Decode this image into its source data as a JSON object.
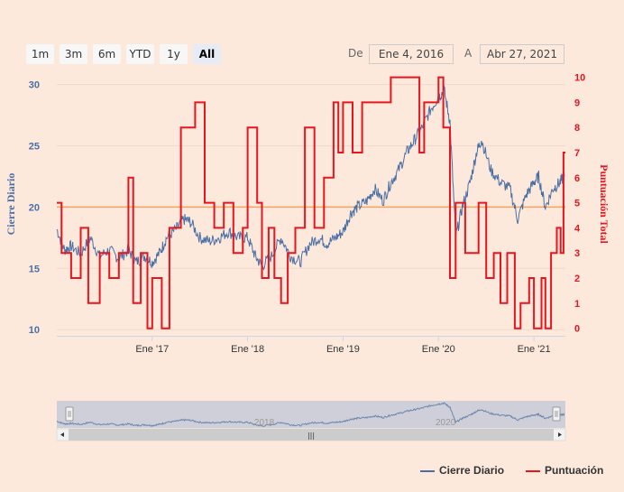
{
  "range_selector": {
    "buttons": [
      "1m",
      "3m",
      "6m",
      "YTD",
      "1y",
      "All"
    ],
    "selected": "All",
    "from_label": "De",
    "from_value": "Ene 4, 2016",
    "to_label": "A",
    "to_value": "Abr 27, 2021"
  },
  "colors": {
    "close": "#4a6fa5",
    "score": "#e8141e",
    "refline": "#f4a460",
    "bg": "#fce9dc"
  },
  "navigator": {
    "labels": [
      "2018",
      "2020"
    ],
    "scroll_grip": "|||"
  },
  "legend": {
    "close_label": "Cierre Diario",
    "score_label": "Puntuación"
  },
  "chart_data": {
    "type": "line",
    "title": "",
    "x_range": [
      2016.0,
      2021.33
    ],
    "x_ticks": [
      {
        "label": "Ene '17",
        "x": 2017.0
      },
      {
        "label": "Ene '18",
        "x": 2018.0
      },
      {
        "label": "Ene '19",
        "x": 2019.0
      },
      {
        "label": "Ene '20",
        "x": 2020.0
      },
      {
        "label": "Ene '21",
        "x": 2021.0
      }
    ],
    "y_left": {
      "label": "Cierre Diario",
      "range": [
        9.5,
        31
      ],
      "ticks": [
        10,
        15,
        20,
        25,
        30
      ]
    },
    "y_right": {
      "label": "Puntuación Total",
      "range": [
        -0.3,
        10.2
      ],
      "ticks": [
        0,
        1,
        2,
        3,
        4,
        5,
        6,
        7,
        8,
        9,
        10
      ]
    },
    "reference_line": {
      "axis": "left",
      "value": 20
    },
    "series": [
      {
        "name": "Cierre Diario",
        "axis": "left",
        "points": [
          [
            2016.0,
            18.2
          ],
          [
            2016.08,
            16.5
          ],
          [
            2016.15,
            16.8
          ],
          [
            2016.25,
            16.2
          ],
          [
            2016.35,
            17.5
          ],
          [
            2016.45,
            16.0
          ],
          [
            2016.55,
            16.5
          ],
          [
            2016.65,
            15.8
          ],
          [
            2016.75,
            16.5
          ],
          [
            2016.83,
            15.5
          ],
          [
            2016.92,
            16.0
          ],
          [
            2017.0,
            15.5
          ],
          [
            2017.08,
            16.3
          ],
          [
            2017.15,
            17.5
          ],
          [
            2017.25,
            18.2
          ],
          [
            2017.33,
            19.0
          ],
          [
            2017.4,
            18.8
          ],
          [
            2017.5,
            17.5
          ],
          [
            2017.6,
            17.2
          ],
          [
            2017.7,
            17.5
          ],
          [
            2017.8,
            18.0
          ],
          [
            2017.9,
            17.5
          ],
          [
            2018.0,
            17.5
          ],
          [
            2018.08,
            16.0
          ],
          [
            2018.15,
            15.2
          ],
          [
            2018.25,
            16.0
          ],
          [
            2018.35,
            17.5
          ],
          [
            2018.45,
            16.0
          ],
          [
            2018.55,
            15.5
          ],
          [
            2018.65,
            17.0
          ],
          [
            2018.75,
            17.5
          ],
          [
            2018.83,
            17.0
          ],
          [
            2018.92,
            17.5
          ],
          [
            2019.0,
            18.0
          ],
          [
            2019.08,
            19.5
          ],
          [
            2019.15,
            20.0
          ],
          [
            2019.25,
            20.5
          ],
          [
            2019.33,
            21.5
          ],
          [
            2019.42,
            20.5
          ],
          [
            2019.5,
            22.0
          ],
          [
            2019.58,
            23.0
          ],
          [
            2019.67,
            24.5
          ],
          [
            2019.75,
            25.5
          ],
          [
            2019.83,
            26.5
          ],
          [
            2019.92,
            28.0
          ],
          [
            2020.0,
            29.0
          ],
          [
            2020.06,
            29.5
          ],
          [
            2020.12,
            27.0
          ],
          [
            2020.18,
            17.5
          ],
          [
            2020.25,
            20.0
          ],
          [
            2020.33,
            22.0
          ],
          [
            2020.4,
            24.5
          ],
          [
            2020.45,
            25.5
          ],
          [
            2020.55,
            23.0
          ],
          [
            2020.65,
            22.0
          ],
          [
            2020.75,
            21.5
          ],
          [
            2020.83,
            19.0
          ],
          [
            2020.92,
            21.0
          ],
          [
            2021.0,
            22.0
          ],
          [
            2021.05,
            22.5
          ],
          [
            2021.12,
            20.0
          ],
          [
            2021.2,
            21.5
          ],
          [
            2021.27,
            22.0
          ],
          [
            2021.32,
            22.5
          ]
        ]
      },
      {
        "name": "Puntuación",
        "axis": "right",
        "steps": [
          [
            2016.0,
            5
          ],
          [
            2016.05,
            3
          ],
          [
            2016.15,
            2
          ],
          [
            2016.25,
            4
          ],
          [
            2016.33,
            1
          ],
          [
            2016.45,
            3
          ],
          [
            2016.55,
            2
          ],
          [
            2016.65,
            3
          ],
          [
            2016.75,
            6
          ],
          [
            2016.8,
            1
          ],
          [
            2016.88,
            3
          ],
          [
            2016.95,
            0
          ],
          [
            2017.0,
            2
          ],
          [
            2017.1,
            0
          ],
          [
            2017.18,
            4
          ],
          [
            2017.3,
            8
          ],
          [
            2017.45,
            9
          ],
          [
            2017.55,
            5
          ],
          [
            2017.65,
            4
          ],
          [
            2017.75,
            5
          ],
          [
            2017.85,
            3
          ],
          [
            2017.95,
            4
          ],
          [
            2018.0,
            8
          ],
          [
            2018.1,
            5
          ],
          [
            2018.15,
            2
          ],
          [
            2018.22,
            4
          ],
          [
            2018.28,
            2
          ],
          [
            2018.35,
            1
          ],
          [
            2018.42,
            3
          ],
          [
            2018.5,
            4
          ],
          [
            2018.6,
            8
          ],
          [
            2018.7,
            4
          ],
          [
            2018.8,
            6
          ],
          [
            2018.9,
            9
          ],
          [
            2018.95,
            7
          ],
          [
            2019.0,
            9
          ],
          [
            2019.1,
            7
          ],
          [
            2019.2,
            9
          ],
          [
            2019.38,
            9
          ],
          [
            2019.5,
            10
          ],
          [
            2019.8,
            7
          ],
          [
            2019.85,
            9
          ],
          [
            2020.0,
            10
          ],
          [
            2020.05,
            8
          ],
          [
            2020.12,
            2
          ],
          [
            2020.18,
            5
          ],
          [
            2020.28,
            3
          ],
          [
            2020.42,
            5
          ],
          [
            2020.5,
            2
          ],
          [
            2020.58,
            3
          ],
          [
            2020.65,
            1
          ],
          [
            2020.72,
            3
          ],
          [
            2020.8,
            0
          ],
          [
            2020.86,
            1
          ],
          [
            2020.95,
            2
          ],
          [
            2021.0,
            0
          ],
          [
            2021.08,
            2
          ],
          [
            2021.12,
            0
          ],
          [
            2021.18,
            3
          ],
          [
            2021.24,
            4
          ],
          [
            2021.28,
            3
          ],
          [
            2021.31,
            7
          ],
          [
            2021.33,
            7
          ]
        ]
      }
    ]
  }
}
